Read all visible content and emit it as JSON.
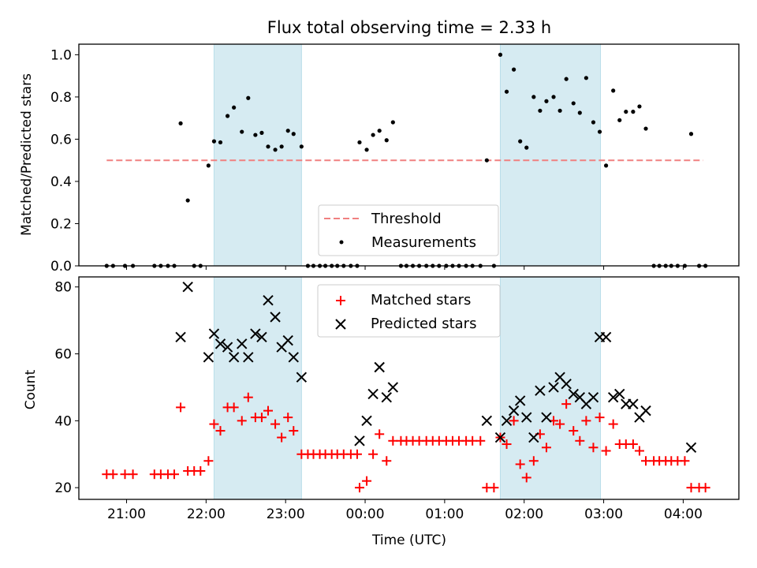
{
  "chart_data": [
    {
      "type": "scatter",
      "title": "Flux total observing time = 2.33 h",
      "xlabel": "",
      "ylabel": "Matched/Predicted stars",
      "ylim": [
        0,
        1.05
      ],
      "xlim_hours": [
        20.4,
        28.7
      ],
      "yticks": [
        "0.0",
        "0.2",
        "0.4",
        "0.6",
        "0.8",
        "1.0"
      ],
      "xticks": [
        {
          "hour": 21,
          "label": ""
        },
        {
          "hour": 22,
          "label": ""
        },
        {
          "hour": 23,
          "label": ""
        },
        {
          "hour": 24,
          "label": ""
        },
        {
          "hour": 25,
          "label": ""
        },
        {
          "hour": 26,
          "label": ""
        },
        {
          "hour": 27,
          "label": ""
        },
        {
          "hour": 28,
          "label": ""
        }
      ],
      "shaded_intervals_hours": [
        [
          22.1,
          23.2
        ],
        [
          25.7,
          26.96
        ]
      ],
      "shade_color": "#add8e6",
      "threshold": {
        "name": "Threshold",
        "value": 0.5,
        "x_range_hours": [
          20.75,
          28.25
        ],
        "color": "#f08080"
      },
      "legend": {
        "placement": "lower center",
        "entries": [
          "Threshold",
          "Measurements"
        ]
      },
      "series": [
        {
          "name": "Measurements",
          "color": "#000000",
          "points": [
            [
              20.75,
              0
            ],
            [
              20.83,
              0
            ],
            [
              20.98,
              0
            ],
            [
              21.08,
              0
            ],
            [
              21.35,
              0
            ],
            [
              21.43,
              0
            ],
            [
              21.52,
              0
            ],
            [
              21.6,
              0
            ],
            [
              21.68,
              0.675
            ],
            [
              21.77,
              0.31
            ],
            [
              21.85,
              0
            ],
            [
              21.93,
              0
            ],
            [
              22.03,
              0.475
            ],
            [
              22.1,
              0.59
            ],
            [
              22.18,
              0.585
            ],
            [
              22.27,
              0.71
            ],
            [
              22.35,
              0.75
            ],
            [
              22.45,
              0.635
            ],
            [
              22.53,
              0.795
            ],
            [
              22.62,
              0.62
            ],
            [
              22.7,
              0.63
            ],
            [
              22.78,
              0.565
            ],
            [
              22.87,
              0.55
            ],
            [
              22.95,
              0.565
            ],
            [
              23.03,
              0.64
            ],
            [
              23.1,
              0.625
            ],
            [
              23.2,
              0.565
            ],
            [
              23.28,
              0
            ],
            [
              23.35,
              0
            ],
            [
              23.43,
              0
            ],
            [
              23.5,
              0
            ],
            [
              23.58,
              0
            ],
            [
              23.65,
              0
            ],
            [
              23.73,
              0
            ],
            [
              23.82,
              0
            ],
            [
              23.9,
              0
            ],
            [
              23.93,
              0.585
            ],
            [
              24.02,
              0.55
            ],
            [
              24.1,
              0.62
            ],
            [
              24.18,
              0.64
            ],
            [
              24.27,
              0.595
            ],
            [
              24.35,
              0.68
            ],
            [
              24.45,
              0
            ],
            [
              24.52,
              0
            ],
            [
              24.6,
              0
            ],
            [
              24.68,
              0
            ],
            [
              24.77,
              0
            ],
            [
              24.85,
              0
            ],
            [
              24.93,
              0
            ],
            [
              25.02,
              0
            ],
            [
              25.1,
              0
            ],
            [
              25.18,
              0
            ],
            [
              25.27,
              0
            ],
            [
              25.35,
              0
            ],
            [
              25.45,
              0
            ],
            [
              25.53,
              0.5
            ],
            [
              25.62,
              0
            ],
            [
              25.7,
              1.0
            ],
            [
              25.78,
              0.825
            ],
            [
              25.87,
              0.93
            ],
            [
              25.95,
              0.59
            ],
            [
              26.03,
              0.56
            ],
            [
              26.12,
              0.8
            ],
            [
              26.2,
              0.735
            ],
            [
              26.28,
              0.78
            ],
            [
              26.37,
              0.8
            ],
            [
              26.45,
              0.735
            ],
            [
              26.53,
              0.885
            ],
            [
              26.62,
              0.77
            ],
            [
              26.7,
              0.725
            ],
            [
              26.78,
              0.89
            ],
            [
              26.87,
              0.68
            ],
            [
              26.95,
              0.635
            ],
            [
              27.03,
              0.475
            ],
            [
              27.12,
              0.83
            ],
            [
              27.2,
              0.69
            ],
            [
              27.28,
              0.73
            ],
            [
              27.37,
              0.73
            ],
            [
              27.45,
              0.755
            ],
            [
              27.53,
              0.65
            ],
            [
              27.63,
              0
            ],
            [
              27.7,
              0
            ],
            [
              27.78,
              0
            ],
            [
              27.85,
              0
            ],
            [
              27.93,
              0
            ],
            [
              28.02,
              0
            ],
            [
              28.1,
              0.625
            ],
            [
              28.2,
              0
            ],
            [
              28.28,
              0
            ]
          ]
        }
      ]
    },
    {
      "type": "scatter",
      "title": "",
      "xlabel": "Time (UTC)",
      "ylabel": "Count",
      "ylim": [
        16.5,
        83
      ],
      "xlim_hours": [
        20.4,
        28.7
      ],
      "yticks": [
        "20",
        "40",
        "60",
        "80"
      ],
      "xticks": [
        {
          "hour": 21,
          "label": "21:00"
        },
        {
          "hour": 22,
          "label": "22:00"
        },
        {
          "hour": 23,
          "label": "23:00"
        },
        {
          "hour": 24,
          "label": "00:00"
        },
        {
          "hour": 25,
          "label": "01:00"
        },
        {
          "hour": 26,
          "label": "02:00"
        },
        {
          "hour": 27,
          "label": "03:00"
        },
        {
          "hour": 28,
          "label": "04:00"
        }
      ],
      "shaded_intervals_hours": [
        [
          22.1,
          23.2
        ],
        [
          25.7,
          26.96
        ]
      ],
      "shade_color": "#add8e6",
      "legend": {
        "placement": "upper center",
        "entries": [
          "Matched stars",
          "Predicted stars"
        ]
      },
      "series": [
        {
          "name": "Matched stars",
          "marker": "+",
          "color": "#ff0000",
          "points": [
            [
              20.75,
              24
            ],
            [
              20.83,
              24
            ],
            [
              20.98,
              24
            ],
            [
              21.08,
              24
            ],
            [
              21.35,
              24
            ],
            [
              21.43,
              24
            ],
            [
              21.52,
              24
            ],
            [
              21.6,
              24
            ],
            [
              21.68,
              44
            ],
            [
              21.77,
              25
            ],
            [
              21.85,
              25
            ],
            [
              21.93,
              25
            ],
            [
              22.03,
              28
            ],
            [
              22.1,
              39
            ],
            [
              22.18,
              37
            ],
            [
              22.27,
              44
            ],
            [
              22.35,
              44
            ],
            [
              22.45,
              40
            ],
            [
              22.53,
              47
            ],
            [
              22.62,
              41
            ],
            [
              22.7,
              41
            ],
            [
              22.78,
              43
            ],
            [
              22.87,
              39
            ],
            [
              22.95,
              35
            ],
            [
              23.03,
              41
            ],
            [
              23.1,
              37
            ],
            [
              23.2,
              30
            ],
            [
              23.28,
              30
            ],
            [
              23.35,
              30
            ],
            [
              23.43,
              30
            ],
            [
              23.5,
              30
            ],
            [
              23.58,
              30
            ],
            [
              23.65,
              30
            ],
            [
              23.73,
              30
            ],
            [
              23.82,
              30
            ],
            [
              23.9,
              30
            ],
            [
              23.93,
              20
            ],
            [
              24.02,
              22
            ],
            [
              24.1,
              30
            ],
            [
              24.18,
              36
            ],
            [
              24.27,
              28
            ],
            [
              24.35,
              34
            ],
            [
              24.45,
              34
            ],
            [
              24.52,
              34
            ],
            [
              24.6,
              34
            ],
            [
              24.68,
              34
            ],
            [
              24.77,
              34
            ],
            [
              24.85,
              34
            ],
            [
              24.93,
              34
            ],
            [
              25.02,
              34
            ],
            [
              25.1,
              34
            ],
            [
              25.18,
              34
            ],
            [
              25.27,
              34
            ],
            [
              25.35,
              34
            ],
            [
              25.45,
              34
            ],
            [
              25.53,
              20
            ],
            [
              25.62,
              20
            ],
            [
              25.7,
              35
            ],
            [
              25.78,
              33
            ],
            [
              25.87,
              40
            ],
            [
              25.95,
              27
            ],
            [
              26.03,
              23
            ],
            [
              26.12,
              28
            ],
            [
              26.2,
              36
            ],
            [
              26.28,
              32
            ],
            [
              26.37,
              40
            ],
            [
              26.45,
              39
            ],
            [
              26.53,
              45
            ],
            [
              26.62,
              37
            ],
            [
              26.7,
              34
            ],
            [
              26.78,
              40
            ],
            [
              26.87,
              32
            ],
            [
              26.95,
              41
            ],
            [
              27.03,
              31
            ],
            [
              27.12,
              39
            ],
            [
              27.2,
              33
            ],
            [
              27.28,
              33
            ],
            [
              27.37,
              33
            ],
            [
              27.45,
              31
            ],
            [
              27.53,
              28
            ],
            [
              27.63,
              28
            ],
            [
              27.7,
              28
            ],
            [
              27.78,
              28
            ],
            [
              27.85,
              28
            ],
            [
              27.93,
              28
            ],
            [
              28.02,
              28
            ],
            [
              28.1,
              20
            ],
            [
              28.2,
              20
            ],
            [
              28.28,
              20
            ]
          ]
        },
        {
          "name": "Predicted stars",
          "marker": "x",
          "color": "#000000",
          "points": [
            [
              21.68,
              65
            ],
            [
              21.77,
              80
            ],
            [
              22.03,
              59
            ],
            [
              22.1,
              66
            ],
            [
              22.18,
              63
            ],
            [
              22.27,
              62
            ],
            [
              22.35,
              59
            ],
            [
              22.45,
              63
            ],
            [
              22.53,
              59
            ],
            [
              22.62,
              66
            ],
            [
              22.7,
              65
            ],
            [
              22.78,
              76
            ],
            [
              22.87,
              71
            ],
            [
              22.95,
              62
            ],
            [
              23.03,
              64
            ],
            [
              23.1,
              59
            ],
            [
              23.2,
              53
            ],
            [
              23.93,
              34
            ],
            [
              24.02,
              40
            ],
            [
              24.1,
              48
            ],
            [
              24.18,
              56
            ],
            [
              24.27,
              47
            ],
            [
              24.35,
              50
            ],
            [
              25.53,
              40
            ],
            [
              25.7,
              35
            ],
            [
              25.78,
              40
            ],
            [
              25.87,
              43
            ],
            [
              25.95,
              46
            ],
            [
              26.03,
              41
            ],
            [
              26.12,
              35
            ],
            [
              26.2,
              49
            ],
            [
              26.28,
              41
            ],
            [
              26.37,
              50
            ],
            [
              26.45,
              53
            ],
            [
              26.53,
              51
            ],
            [
              26.62,
              48
            ],
            [
              26.7,
              47
            ],
            [
              26.78,
              45
            ],
            [
              26.87,
              47
            ],
            [
              26.95,
              65
            ],
            [
              27.03,
              65
            ],
            [
              27.12,
              47
            ],
            [
              27.2,
              48
            ],
            [
              27.28,
              45
            ],
            [
              27.37,
              45
            ],
            [
              27.45,
              41
            ],
            [
              27.53,
              43
            ],
            [
              28.1,
              32
            ]
          ]
        }
      ]
    }
  ]
}
